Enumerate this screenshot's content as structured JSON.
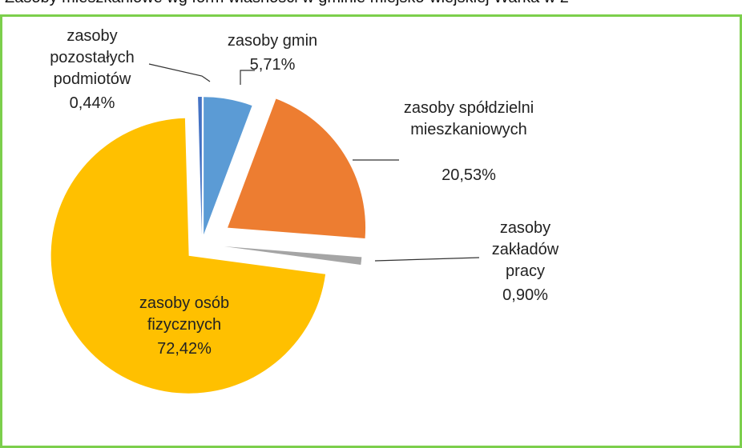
{
  "chart_data": {
    "type": "pie",
    "title": "Zasoby mieszkaniowe wg form własności w gminie miejsko-wiejskiej Warka w 2",
    "categories": [
      "zasoby gmin",
      "zasoby spółdzielni mieszkaniowych",
      "zasoby zakładów pracy",
      "zasoby osób fizycznych",
      "zasoby pozostałych podmiotów"
    ],
    "values": [
      5.71,
      20.53,
      0.9,
      72.42,
      0.44
    ],
    "value_labels": [
      "5,71%",
      "20,53%",
      "0,90%",
      "72,42%",
      "0,44%"
    ],
    "colors": [
      "#5b9bd5",
      "#ed7d31",
      "#a5a5a5",
      "#ffc000",
      "#4472c4"
    ]
  }
}
